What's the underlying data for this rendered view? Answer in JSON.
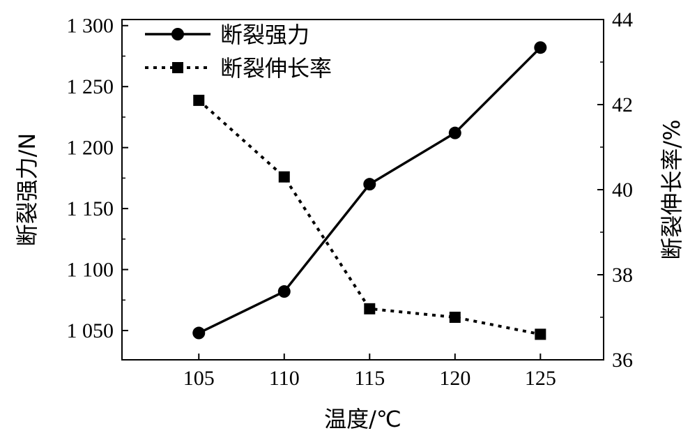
{
  "chart_data": {
    "type": "line",
    "x": [
      105,
      110,
      115,
      120,
      125
    ],
    "x_tick_labels": [
      "105",
      "110",
      "115",
      "120",
      "125"
    ],
    "xlim": [
      100.5,
      128.7
    ],
    "xlabel": "温度/℃",
    "y_left": {
      "label": "断裂强力/N",
      "lim": [
        1026,
        1305
      ],
      "ticks": [
        1050,
        1100,
        1150,
        1200,
        1250,
        1300
      ],
      "tick_labels": [
        "1 050",
        "1 100",
        "1 150",
        "1 200",
        "1 250",
        "1 300"
      ]
    },
    "y_right": {
      "label": "断裂伸长率/%",
      "lim": [
        36,
        44
      ],
      "ticks": [
        36,
        38,
        40,
        42,
        44
      ],
      "tick_labels": [
        "36",
        "38",
        "40",
        "42",
        "44"
      ]
    },
    "series": [
      {
        "name": "断裂强力",
        "axis": "left",
        "marker": "circle",
        "line": "solid",
        "values": [
          1048,
          1082,
          1170,
          1212,
          1282
        ]
      },
      {
        "name": "断裂伸长率",
        "axis": "right",
        "marker": "square",
        "line": "dotted",
        "values": [
          42.1,
          40.3,
          37.2,
          37.0,
          36.6
        ]
      }
    ],
    "legend_position": "top-left",
    "grid": false
  }
}
